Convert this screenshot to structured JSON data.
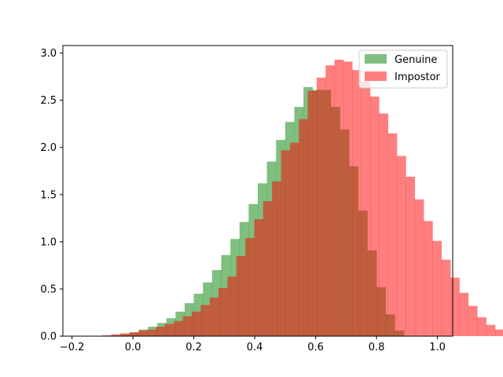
{
  "chart_data": {
    "type": "bar",
    "chart_kind": "overlapping histogram",
    "title": "",
    "xlabel": "",
    "ylabel": "",
    "xlim": [
      -0.23,
      1.05
    ],
    "ylim": [
      0,
      3.08
    ],
    "xticks": [
      -0.2,
      0.0,
      0.2,
      0.4,
      0.6,
      0.8,
      1.0
    ],
    "xtick_labels": [
      "−0.2",
      "0.0",
      "0.2",
      "0.4",
      "0.6",
      "0.8",
      "1.0"
    ],
    "yticks": [
      0.0,
      0.5,
      1.0,
      1.5,
      2.0,
      2.5,
      3.0
    ],
    "ytick_labels": [
      "0.0",
      "0.5",
      "1.0",
      "1.5",
      "2.0",
      "2.5",
      "3.0"
    ],
    "grid": false,
    "legend_position": "upper right",
    "series": [
      {
        "name": "Genuine",
        "color": "#008000",
        "alpha": 0.5,
        "bin_start": -0.1,
        "bin_width": 0.03,
        "values": [
          0.0,
          0.01,
          0.02,
          0.04,
          0.07,
          0.1,
          0.14,
          0.19,
          0.26,
          0.35,
          0.45,
          0.57,
          0.7,
          0.86,
          1.03,
          1.21,
          1.4,
          1.62,
          1.85,
          2.08,
          2.27,
          2.43,
          2.64,
          2.61,
          2.61,
          2.43,
          2.19,
          1.8,
          1.33,
          0.91,
          0.52,
          0.23,
          0.06,
          0.0
        ]
      },
      {
        "name": "Impostor",
        "color": "#ff0000",
        "alpha": 0.5,
        "bin_start": -0.1,
        "bin_width": 0.0293,
        "values": [
          0.01,
          0.02,
          0.03,
          0.04,
          0.06,
          0.07,
          0.1,
          0.13,
          0.16,
          0.21,
          0.26,
          0.33,
          0.41,
          0.51,
          0.63,
          0.85,
          1.04,
          1.24,
          1.43,
          1.64,
          1.97,
          2.05,
          2.3,
          2.6,
          2.74,
          2.87,
          2.93,
          2.91,
          2.82,
          2.7,
          2.54,
          2.36,
          2.15,
          1.91,
          1.69,
          1.45,
          1.22,
          1.01,
          0.81,
          0.62,
          0.46,
          0.32,
          0.2,
          0.12,
          0.07,
          0.04,
          0.02,
          0.01
        ]
      }
    ]
  }
}
